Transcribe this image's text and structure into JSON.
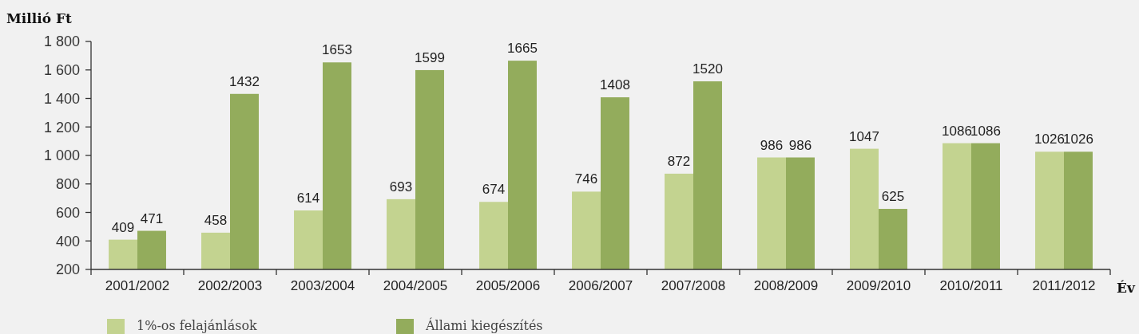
{
  "chart_data": {
    "type": "bar",
    "xlabel": "Év",
    "ylabel": "Millió Ft",
    "categories": [
      "2001/2002",
      "2002/2003",
      "2003/2004",
      "2004/2005",
      "2005/2006",
      "2006/2007",
      "2007/2008",
      "2008/2009",
      "2009/2010",
      "2010/2011",
      "2011/2012"
    ],
    "series": [
      {
        "name": "1%-os felajánlások",
        "color": "#c3d390",
        "values": [
          409,
          458,
          614,
          693,
          674,
          746,
          872,
          986,
          1047,
          1086,
          1026
        ]
      },
      {
        "name": "Állami kiegészítés",
        "color": "#93ac5c",
        "values": [
          471,
          1432,
          1653,
          1599,
          1665,
          1408,
          1520,
          986,
          625,
          1086,
          1026
        ]
      }
    ],
    "ylim": [
      200,
      1800
    ],
    "yticks": [
      200,
      400,
      600,
      800,
      {
        "value": 1000,
        "label": "1 000"
      },
      {
        "value": 1200,
        "label": "1 200"
      },
      {
        "value": 1400,
        "label": "1 400"
      },
      {
        "value": 1600,
        "label": "1 600"
      },
      {
        "value": 1800,
        "label": "1 800"
      }
    ],
    "data_labels": true,
    "grid": false,
    "legend": "bottom left"
  }
}
